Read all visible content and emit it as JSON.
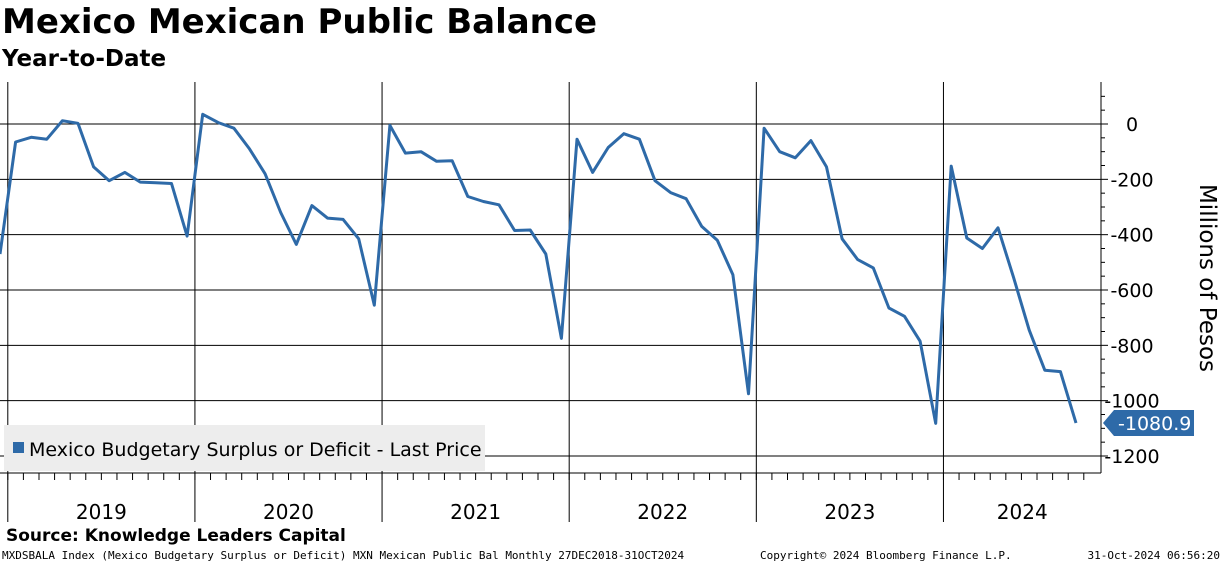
{
  "title": "Mexico Mexican Public Balance",
  "subtitle": "Year-to-Date",
  "source": "Source: Knowledge Leaders Capital",
  "footer": {
    "left": "MXDSBALA Index (Mexico Budgetary Surplus or Deficit) MXN Mexican Public Bal  Monthly 27DEC2018-31OCT2024",
    "center": "Copyright© 2024 Bloomberg Finance L.P.",
    "right": "31-Oct-2024 06:56:20"
  },
  "colors": {
    "line": "#2e6aa8",
    "label_bg": "#2e6aa8",
    "legend_bg": "#ededed"
  },
  "chart_data": {
    "type": "line",
    "title": "Mexico Mexican Public Balance",
    "subtitle": "Year-to-Date",
    "ylabel": "Millions of Pesos",
    "xlabel": "",
    "ylim": [
      -1200,
      130
    ],
    "yticks": [
      0,
      -200,
      -400,
      -600,
      -800,
      -1000,
      -1200
    ],
    "grid": true,
    "legend": {
      "label": "Mexico Budgetary Surplus or Deficit - Last Price",
      "position": "bottom-left"
    },
    "last_value_label": "-1080.9",
    "x_categories": [
      "2019",
      "2020",
      "2021",
      "2022",
      "2023",
      "2024"
    ],
    "series": [
      {
        "name": "Mexico Budgetary Surplus or Deficit - Last Price",
        "start": "2018-12",
        "values": [
          -470,
          -65,
          -48,
          -55,
          12,
          2,
          -155,
          -205,
          -175,
          -210,
          -212,
          -215,
          -405,
          35,
          5,
          -15,
          -90,
          -180,
          -320,
          -435,
          -295,
          -340,
          -345,
          -415,
          -655,
          -5,
          -105,
          -100,
          -135,
          -133,
          -262,
          -280,
          -292,
          -385,
          -383,
          -470,
          -775,
          -55,
          -175,
          -85,
          -35,
          -55,
          -205,
          -248,
          -270,
          -370,
          -420,
          -545,
          -975,
          -15,
          -100,
          -122,
          -60,
          -155,
          -415,
          -490,
          -520,
          -665,
          -695,
          -785,
          -1082,
          -152,
          -412,
          -450,
          -375,
          -555,
          -745,
          -890,
          -895,
          -1080.9
        ]
      }
    ]
  }
}
